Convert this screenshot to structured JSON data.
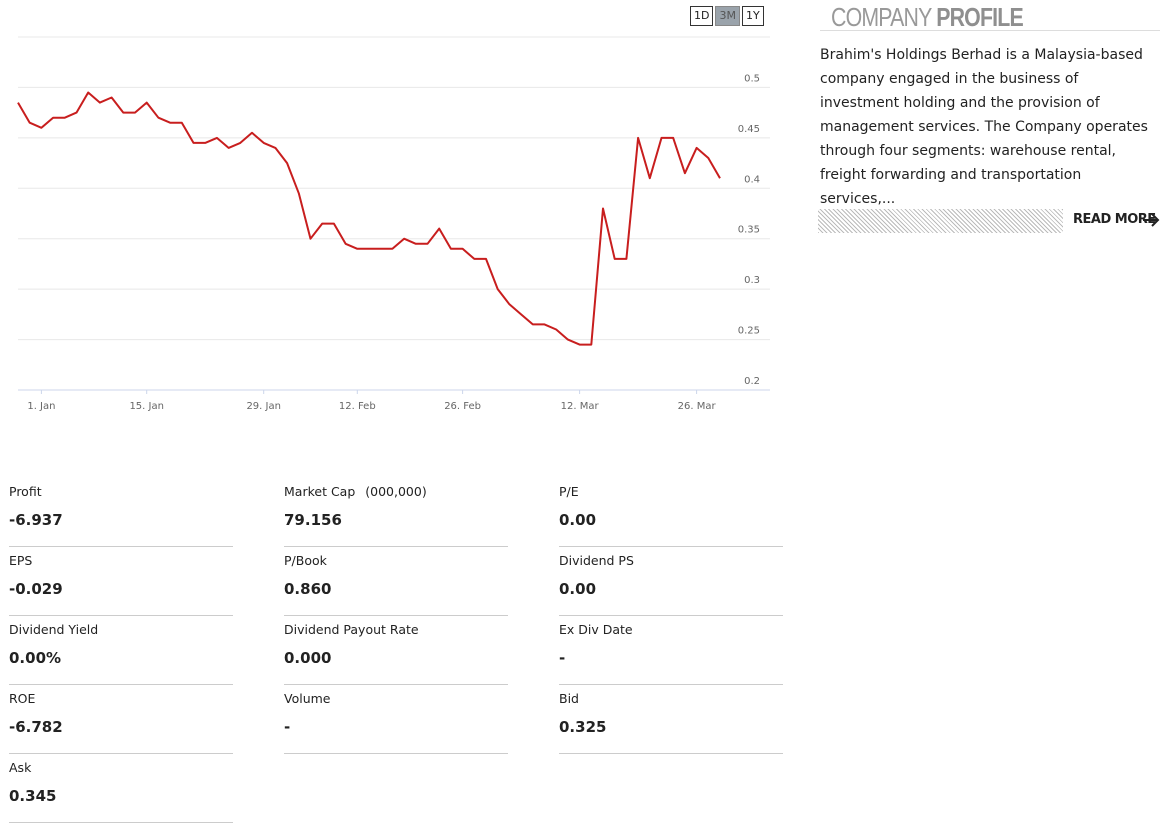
{
  "range_buttons": [
    {
      "label": "1D"
    },
    {
      "label": "3M",
      "active": true
    },
    {
      "label": "1Y"
    }
  ],
  "chart_data": {
    "type": "line",
    "color": "#c81e1e",
    "grid": true,
    "categories": [
      null,
      null,
      "1. Jan",
      null,
      null,
      null,
      null,
      null,
      null,
      null,
      null,
      "15. Jan",
      null,
      null,
      null,
      null,
      null,
      null,
      null,
      null,
      null,
      "29. Jan",
      null,
      null,
      null,
      null,
      null,
      null,
      null,
      "12. Feb",
      null,
      null,
      null,
      null,
      null,
      null,
      null,
      null,
      "26. Feb",
      null,
      null,
      null,
      null,
      null,
      null,
      null,
      null,
      null,
      "12. Mar",
      null,
      null,
      null,
      null,
      null,
      null,
      null,
      null,
      null,
      "26. Mar",
      null,
      null
    ],
    "values": [
      0.485,
      0.465,
      0.46,
      0.47,
      0.47,
      0.475,
      0.495,
      0.485,
      0.49,
      0.475,
      0.475,
      0.485,
      0.47,
      0.465,
      0.465,
      0.445,
      0.445,
      0.45,
      0.44,
      0.445,
      0.455,
      0.445,
      0.44,
      0.425,
      0.395,
      0.35,
      0.365,
      0.365,
      0.345,
      0.34,
      0.34,
      0.34,
      0.34,
      0.35,
      0.345,
      0.345,
      0.36,
      0.34,
      0.34,
      0.33,
      0.33,
      0.3,
      0.285,
      0.275,
      0.265,
      0.265,
      0.26,
      0.25,
      0.245,
      0.245,
      0.38,
      0.33,
      0.33,
      0.45,
      0.41,
      0.45,
      0.45,
      0.415,
      0.44,
      0.43,
      0.41
    ],
    "ylim": [
      0.2,
      0.55
    ],
    "yticks": [
      0.2,
      0.25,
      0.3,
      0.35,
      0.4,
      0.45,
      0.5
    ]
  },
  "profile": {
    "title_light": "COMPANY",
    "title_bold": "PROFILE",
    "description": "Brahim's Holdings Berhad is a Malaysia-based company engaged in the business of investment holding and the provision of management services. The Company operates through four segments: warehouse rental, freight forwarding and transportation services,...",
    "read_more": "READ MORE"
  },
  "stats": [
    {
      "label": "Profit",
      "value": "-6.937"
    },
    {
      "label": "Market Cap",
      "unit": "(000,000)",
      "value": "79.156"
    },
    {
      "label": "P/E",
      "value": "0.00"
    },
    {
      "label": "EPS",
      "value": "-0.029"
    },
    {
      "label": "P/Book",
      "value": "0.860"
    },
    {
      "label": "Dividend PS",
      "value": "0.00"
    },
    {
      "label": "Dividend Yield",
      "value": "0.00%"
    },
    {
      "label": "Dividend Payout Rate",
      "value": "0.000"
    },
    {
      "label": "Ex Div Date",
      "value": "-"
    },
    {
      "label": "ROE",
      "value": "-6.782"
    },
    {
      "label": "Volume",
      "value": "-"
    },
    {
      "label": "Bid",
      "value": "0.325"
    },
    {
      "label": "Ask",
      "value": "0.345"
    }
  ]
}
